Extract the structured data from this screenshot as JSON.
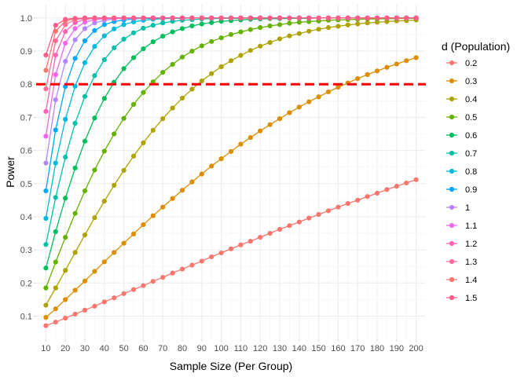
{
  "chart_data": {
    "type": "line",
    "title": "",
    "xlabel": "Sample Size (Per Group)",
    "ylabel": "Power",
    "xlim": [
      5,
      205
    ],
    "ylim": [
      0.03,
      1.04
    ],
    "x_ticks": [
      10,
      20,
      30,
      40,
      50,
      60,
      70,
      80,
      90,
      100,
      110,
      120,
      130,
      140,
      150,
      160,
      170,
      180,
      190,
      200
    ],
    "x_tick_labels": [
      "10",
      "20",
      "30",
      "40",
      "50",
      "60",
      "70",
      "80",
      "90",
      "100",
      "110",
      "120",
      "130",
      "140",
      "150",
      "160",
      "170",
      "180",
      "190",
      "200"
    ],
    "y_ticks": [
      0.1,
      0.2,
      0.3,
      0.4,
      0.5,
      0.6,
      0.7,
      0.8,
      0.9,
      1.0
    ],
    "y_tick_labels": [
      "0.1",
      "0.2",
      "0.3",
      "0.4",
      "0.5",
      "0.6",
      "0.7",
      "0.8",
      "0.9",
      "1.0"
    ],
    "grid": true,
    "legend": {
      "title": "d (Population)",
      "position": "right"
    },
    "reference_line": {
      "y": 0.8,
      "color": "#ff0000",
      "style": "dashed"
    },
    "x": [
      10,
      15,
      20,
      25,
      30,
      35,
      40,
      45,
      50,
      55,
      60,
      65,
      70,
      75,
      80,
      85,
      90,
      95,
      100,
      105,
      110,
      115,
      120,
      125,
      130,
      135,
      140,
      145,
      150,
      155,
      160,
      165,
      170,
      175,
      180,
      185,
      190,
      195,
      200
    ],
    "series": [
      {
        "name": "0.2",
        "color": "#F8766D",
        "values": [
          0.071,
          0.082,
          0.094,
          0.106,
          0.118,
          0.13,
          0.143,
          0.155,
          0.168,
          0.18,
          0.192,
          0.205,
          0.217,
          0.23,
          0.242,
          0.254,
          0.266,
          0.279,
          0.291,
          0.303,
          0.315,
          0.326,
          0.338,
          0.35,
          0.362,
          0.373,
          0.384,
          0.396,
          0.407,
          0.418,
          0.429,
          0.44,
          0.45,
          0.461,
          0.471,
          0.482,
          0.492,
          0.502,
          0.512
        ]
      },
      {
        "name": "0.3",
        "color": "#DB8E00",
        "values": [
          0.096,
          0.122,
          0.15,
          0.178,
          0.206,
          0.235,
          0.264,
          0.292,
          0.32,
          0.348,
          0.376,
          0.403,
          0.429,
          0.455,
          0.48,
          0.505,
          0.529,
          0.553,
          0.575,
          0.597,
          0.619,
          0.639,
          0.659,
          0.678,
          0.696,
          0.714,
          0.731,
          0.747,
          0.762,
          0.777,
          0.791,
          0.804,
          0.817,
          0.829,
          0.84,
          0.851,
          0.861,
          0.871,
          0.88
        ]
      },
      {
        "name": "0.4",
        "color": "#AEA200",
        "values": [
          0.133,
          0.185,
          0.238,
          0.292,
          0.345,
          0.397,
          0.447,
          0.495,
          0.54,
          0.583,
          0.623,
          0.661,
          0.696,
          0.728,
          0.758,
          0.785,
          0.81,
          0.832,
          0.853,
          0.871,
          0.887,
          0.902,
          0.915,
          0.926,
          0.937,
          0.946,
          0.953,
          0.96,
          0.966,
          0.971,
          0.975,
          0.979,
          0.982,
          0.985,
          0.987,
          0.989,
          0.991,
          0.992,
          0.994
        ]
      },
      {
        "name": "0.5",
        "color": "#64B200",
        "values": [
          0.185,
          0.263,
          0.338,
          0.41,
          0.478,
          0.541,
          0.598,
          0.65,
          0.697,
          0.739,
          0.775,
          0.807,
          0.836,
          0.86,
          0.882,
          0.9,
          0.916,
          0.929,
          0.94,
          0.95,
          0.958,
          0.965,
          0.971,
          0.976,
          0.98,
          0.984,
          0.987,
          0.989,
          0.991,
          0.993,
          0.994,
          0.995,
          0.996,
          0.997,
          0.997,
          0.998,
          0.998,
          0.999,
          0.999
        ]
      },
      {
        "name": "0.6",
        "color": "#00BD5C",
        "values": [
          0.245,
          0.355,
          0.456,
          0.547,
          0.628,
          0.698,
          0.757,
          0.806,
          0.847,
          0.88,
          0.907,
          0.928,
          0.945,
          0.958,
          0.968,
          0.976,
          0.982,
          0.986,
          0.99,
          0.992,
          0.994,
          0.996,
          0.997,
          0.998,
          0.998,
          0.999,
          0.999,
          0.999,
          1.0,
          1.0,
          1.0,
          1.0,
          1.0,
          1.0,
          1.0,
          1.0,
          1.0,
          1.0,
          1.0
        ]
      },
      {
        "name": "0.7",
        "color": "#00C1A7",
        "values": [
          0.316,
          0.458,
          0.58,
          0.682,
          0.763,
          0.826,
          0.874,
          0.91,
          0.936,
          0.955,
          0.969,
          0.978,
          0.985,
          0.99,
          0.993,
          0.995,
          0.997,
          0.998,
          0.999,
          0.999,
          0.999,
          1.0,
          1.0,
          1.0,
          1.0,
          1.0,
          1.0,
          1.0,
          1.0,
          1.0,
          1.0,
          1.0,
          1.0,
          1.0,
          1.0,
          1.0,
          1.0,
          1.0,
          1.0
        ]
      },
      {
        "name": "0.8",
        "color": "#00BADE",
        "values": [
          0.395,
          0.562,
          0.694,
          0.794,
          0.865,
          0.914,
          0.946,
          0.967,
          0.98,
          0.988,
          0.993,
          0.996,
          0.998,
          0.999,
          0.999,
          1.0,
          1.0,
          1.0,
          1.0,
          1.0,
          1.0,
          1.0,
          1.0,
          1.0,
          1.0,
          1.0,
          1.0,
          1.0,
          1.0,
          1.0,
          1.0,
          1.0,
          1.0,
          1.0,
          1.0,
          1.0,
          1.0,
          1.0,
          1.0
        ]
      },
      {
        "name": "0.9",
        "color": "#00A6FF",
        "values": [
          0.478,
          0.662,
          0.793,
          0.878,
          0.931,
          0.962,
          0.98,
          0.989,
          0.994,
          0.997,
          0.999,
          0.999,
          1.0,
          1.0,
          1.0,
          1.0,
          1.0,
          1.0,
          1.0,
          1.0,
          1.0,
          1.0,
          1.0,
          1.0,
          1.0,
          1.0,
          1.0,
          1.0,
          1.0,
          1.0,
          1.0,
          1.0,
          1.0,
          1.0,
          1.0,
          1.0,
          1.0,
          1.0,
          1.0
        ]
      },
      {
        "name": "1",
        "color": "#B385FF",
        "values": [
          0.562,
          0.753,
          0.869,
          0.934,
          0.968,
          0.985,
          0.993,
          0.997,
          0.999,
          0.999,
          1.0,
          1.0,
          1.0,
          1.0,
          1.0,
          1.0,
          1.0,
          1.0,
          1.0,
          1.0,
          1.0,
          1.0,
          1.0,
          1.0,
          1.0,
          1.0,
          1.0,
          1.0,
          1.0,
          1.0,
          1.0,
          1.0,
          1.0,
          1.0,
          1.0,
          1.0,
          1.0,
          1.0,
          1.0
        ]
      },
      {
        "name": "1.1",
        "color": "#EF67EB",
        "values": [
          0.643,
          0.829,
          0.924,
          0.968,
          0.987,
          0.995,
          0.998,
          0.999,
          1.0,
          1.0,
          1.0,
          1.0,
          1.0,
          1.0,
          1.0,
          1.0,
          1.0,
          1.0,
          1.0,
          1.0,
          1.0,
          1.0,
          1.0,
          1.0,
          1.0,
          1.0,
          1.0,
          1.0,
          1.0,
          1.0,
          1.0,
          1.0,
          1.0,
          1.0,
          1.0,
          1.0,
          1.0,
          1.0,
          1.0
        ]
      },
      {
        "name": "1.2",
        "color": "#FF63B6",
        "values": [
          0.718,
          0.888,
          0.959,
          0.986,
          0.996,
          0.999,
          1.0,
          1.0,
          1.0,
          1.0,
          1.0,
          1.0,
          1.0,
          1.0,
          1.0,
          1.0,
          1.0,
          1.0,
          1.0,
          1.0,
          1.0,
          1.0,
          1.0,
          1.0,
          1.0,
          1.0,
          1.0,
          1.0,
          1.0,
          1.0,
          1.0,
          1.0,
          1.0,
          1.0,
          1.0,
          1.0,
          1.0,
          1.0,
          1.0
        ]
      },
      {
        "name": "1.3",
        "color": "#FF6A98",
        "values": [
          0.786,
          0.931,
          0.98,
          0.995,
          0.999,
          1.0,
          1.0,
          1.0,
          1.0,
          1.0,
          1.0,
          1.0,
          1.0,
          1.0,
          1.0,
          1.0,
          1.0,
          1.0,
          1.0,
          1.0,
          1.0,
          1.0,
          1.0,
          1.0,
          1.0,
          1.0,
          1.0,
          1.0,
          1.0,
          1.0,
          1.0,
          1.0,
          1.0,
          1.0,
          1.0,
          1.0,
          1.0,
          1.0,
          1.0
        ]
      },
      {
        "name": "1.4",
        "color": "#F8766D",
        "values": [
          0.842,
          0.96,
          0.991,
          0.998,
          1.0,
          1.0,
          1.0,
          1.0,
          1.0,
          1.0,
          1.0,
          1.0,
          1.0,
          1.0,
          1.0,
          1.0,
          1.0,
          1.0,
          1.0,
          1.0,
          1.0,
          1.0,
          1.0,
          1.0,
          1.0,
          1.0,
          1.0,
          1.0,
          1.0,
          1.0,
          1.0,
          1.0,
          1.0,
          1.0,
          1.0,
          1.0,
          1.0,
          1.0,
          1.0
        ]
      },
      {
        "name": "1.5",
        "color": "#FF5C8A",
        "values": [
          0.888,
          0.978,
          0.996,
          0.999,
          1.0,
          1.0,
          1.0,
          1.0,
          1.0,
          1.0,
          1.0,
          1.0,
          1.0,
          1.0,
          1.0,
          1.0,
          1.0,
          1.0,
          1.0,
          1.0,
          1.0,
          1.0,
          1.0,
          1.0,
          1.0,
          1.0,
          1.0,
          1.0,
          1.0,
          1.0,
          1.0,
          1.0,
          1.0,
          1.0,
          1.0,
          1.0,
          1.0,
          1.0,
          1.0
        ]
      }
    ]
  }
}
